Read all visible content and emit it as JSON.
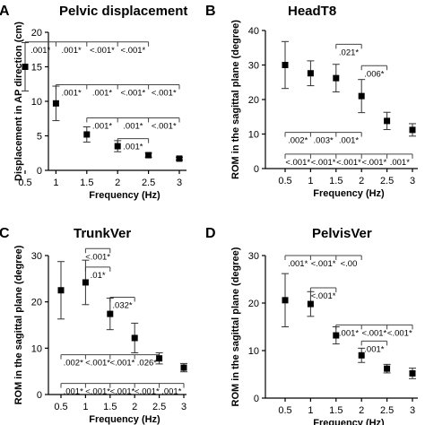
{
  "chart_data": [
    {
      "type": "scatter",
      "panel_label": "A",
      "title": "Pelvic displacement",
      "xlabel": "Frequency (Hz)",
      "ylabel": "Displacement in AP direction (cm)",
      "ylim": [
        0,
        20
      ],
      "yticks": [
        0,
        5,
        10,
        15,
        20
      ],
      "x": [
        "0.5",
        "1",
        "1.5",
        "2",
        "2.5",
        "3"
      ],
      "values": [
        15.0,
        9.7,
        5.2,
        3.5,
        2.2,
        1.7
      ],
      "errors": [
        3.5,
        2.5,
        1.1,
        0.8,
        0.3,
        0.2
      ],
      "annotations": [
        {
          "from": 0,
          "labels": [
            ".001*",
            ".001*",
            "<.001*",
            "<.001*"
          ],
          "y": 18.6
        },
        {
          "from": 1,
          "labels": [
            ".001*",
            ".001*",
            "<.001*",
            "<.001*"
          ],
          "y": 12.4
        },
        {
          "from": 2,
          "labels": [
            ".001*",
            ".001*",
            "<.001*"
          ],
          "y": 7.6
        },
        {
          "from": 3,
          "labels": [
            ".001*"
          ],
          "y": 4.6
        }
      ]
    },
    {
      "type": "scatter",
      "panel_label": "B",
      "title": "HeadT8",
      "xlabel": "Frequency (Hz)",
      "ylabel": "ROM in the sagittal plane (degree)",
      "ylim": [
        0,
        40
      ],
      "yticks": [
        0,
        10,
        20,
        30,
        40
      ],
      "x": [
        "0.5",
        "1",
        "1.5",
        "2",
        "2.5",
        "3"
      ],
      "values": [
        30.0,
        27.6,
        26.2,
        21.0,
        13.8,
        11.2
      ],
      "errors": [
        6.8,
        3.6,
        4.0,
        4.8,
        2.5,
        1.8
      ],
      "annotations": [
        {
          "from": 2,
          "labels": [
            ".021*"
          ],
          "y": 36.0
        },
        {
          "from": 3,
          "labels": [
            ".006*"
          ],
          "y": 29.8
        },
        {
          "from": 0,
          "labels": [
            ".002*",
            ".003*",
            ".001*"
          ],
          "y": 10.5
        },
        {
          "from": 0,
          "labels": [
            "<.001*",
            "<.001*",
            "<.001*",
            "<.001*",
            ".001*"
          ],
          "y": 4.2
        }
      ]
    },
    {
      "type": "scatter",
      "panel_label": "C",
      "title": "TrunkVer",
      "xlabel": "Frequency (Hz)",
      "ylabel": "ROM in the sagittal plane (degree)",
      "ylim": [
        0,
        30
      ],
      "yticks": [
        0,
        10,
        20,
        30
      ],
      "x": [
        "0.5",
        "1",
        "1.5",
        "2",
        "2.5",
        "3"
      ],
      "values": [
        22.5,
        24.2,
        17.4,
        12.2,
        7.8,
        5.8
      ],
      "errors": [
        6.2,
        4.8,
        3.4,
        3.2,
        1.2,
        0.9
      ],
      "annotations": [
        {
          "from": 1,
          "labels": [
            "<.001*"
          ],
          "y": 31.5
        },
        {
          "from": 1,
          "labels": [
            ".01*"
          ],
          "y": 27.5
        },
        {
          "from": 2,
          "labels": [
            ".032*"
          ],
          "y": 21.0
        },
        {
          "from": 0,
          "labels": [
            ".002*",
            "<.001*",
            "<.001*",
            ".026*"
          ],
          "y": 8.6
        },
        {
          "from": 0,
          "labels": [
            ".001*",
            "<.001*",
            "<.001*",
            "<.001*",
            ".001*"
          ],
          "y": 2.4
        }
      ]
    },
    {
      "type": "scatter",
      "panel_label": "D",
      "title": "PelvisVer",
      "xlabel": "Frequency (Hz)",
      "ylabel": "ROM in the sagittal plane (degree)",
      "ylim": [
        0,
        30
      ],
      "yticks": [
        0,
        10,
        20,
        30
      ],
      "x": [
        "0.5",
        "1",
        "1.5",
        "2",
        "2.5",
        "3"
      ],
      "values": [
        20.6,
        19.8,
        13.2,
        9.0,
        6.2,
        5.2
      ],
      "errors": [
        5.6,
        2.6,
        1.8,
        1.5,
        0.9,
        1.1
      ],
      "annotations": [
        {
          "from": 0,
          "labels": [
            ".001*",
            "<.001*",
            "<.00"
          ],
          "y": 30.0
        },
        {
          "from": 1,
          "labels": [
            "<.001*"
          ],
          "y": 23.2
        },
        {
          "from": 2,
          "labels": [
            ".001*",
            "<.001*",
            "<.001*"
          ],
          "y": 15.4
        },
        {
          "from": 3,
          "labels": [
            ".001*"
          ],
          "y": 12.0
        }
      ]
    }
  ]
}
